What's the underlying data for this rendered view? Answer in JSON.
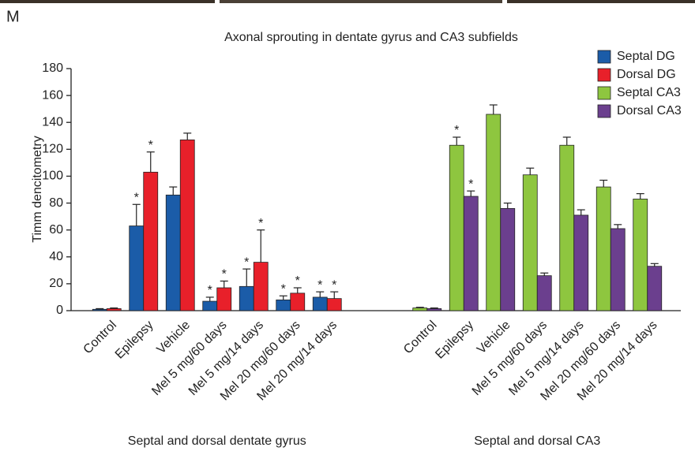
{
  "panel_label": "M",
  "chart_data": {
    "type": "bar",
    "title": "Axonal sprouting in dentate gyrus and CA3 subfields",
    "y_label": "Timm dencitometry",
    "groups": [
      {
        "label": "Septal and dorsal dentate gyrus",
        "size": 7
      },
      {
        "label": "Septal and dorsal CA3",
        "size": 7
      }
    ],
    "categories": [
      "Control",
      "Epilepsy",
      "Vehicle",
      "Mel 5 mg/60 days",
      "Mel 5 mg/14 days",
      "Mel 20 mg/60 days",
      "Mel 20 mg/14 days",
      "Control",
      "Epilepsy",
      "Vehicle",
      "Mel 5 mg/60 days",
      "Mel 5 mg/14 days",
      "Mel 20 mg/60 days",
      "Mel 20 mg/14 days"
    ],
    "series": [
      {
        "name": "Septal DG",
        "color": "#1b5ca8",
        "values": [
          1,
          63,
          86,
          7,
          18,
          8,
          10,
          null,
          null,
          null,
          null,
          null,
          null,
          null
        ],
        "errors": [
          0.5,
          16,
          6,
          3,
          13,
          3,
          4,
          null,
          null,
          null,
          null,
          null,
          null,
          null
        ],
        "markers": [
          null,
          "*",
          null,
          "*",
          "*",
          "*",
          "*",
          null,
          null,
          null,
          null,
          null,
          null,
          null
        ]
      },
      {
        "name": "Dorsal DG",
        "color": "#e8202a",
        "values": [
          1.5,
          103,
          127,
          17,
          36,
          13,
          9,
          null,
          null,
          null,
          null,
          null,
          null,
          null
        ],
        "errors": [
          0.5,
          15,
          5,
          5,
          24,
          4,
          5,
          null,
          null,
          null,
          null,
          null,
          null,
          null
        ],
        "markers": [
          null,
          "*",
          null,
          "*",
          "*",
          "*",
          "*",
          null,
          null,
          null,
          null,
          null,
          null,
          null
        ]
      },
      {
        "name": "Septal CA3",
        "color": "#8ec63f",
        "values": [
          null,
          null,
          null,
          null,
          null,
          null,
          null,
          2,
          123,
          146,
          101,
          123,
          92,
          83
        ],
        "errors": [
          null,
          null,
          null,
          null,
          null,
          null,
          null,
          0.5,
          6,
          7,
          5,
          6,
          5,
          4
        ],
        "markers": [
          null,
          null,
          null,
          null,
          null,
          null,
          null,
          null,
          "*",
          null,
          null,
          null,
          null,
          null
        ]
      },
      {
        "name": "Dorsal CA3",
        "color": "#6b3f8e",
        "values": [
          null,
          null,
          null,
          null,
          null,
          null,
          null,
          1.5,
          85,
          76,
          26,
          71,
          61,
          33
        ],
        "errors": [
          null,
          null,
          null,
          null,
          null,
          null,
          null,
          0.5,
          4,
          4,
          2,
          4,
          3,
          2
        ],
        "markers": [
          null,
          null,
          null,
          null,
          null,
          null,
          null,
          null,
          "*",
          null,
          null,
          null,
          null,
          null
        ]
      }
    ],
    "ylim": [
      0,
      180
    ],
    "yticks": [
      0,
      20,
      40,
      60,
      80,
      100,
      120,
      140,
      160,
      180
    ],
    "grid": false,
    "legend": "top-right"
  }
}
